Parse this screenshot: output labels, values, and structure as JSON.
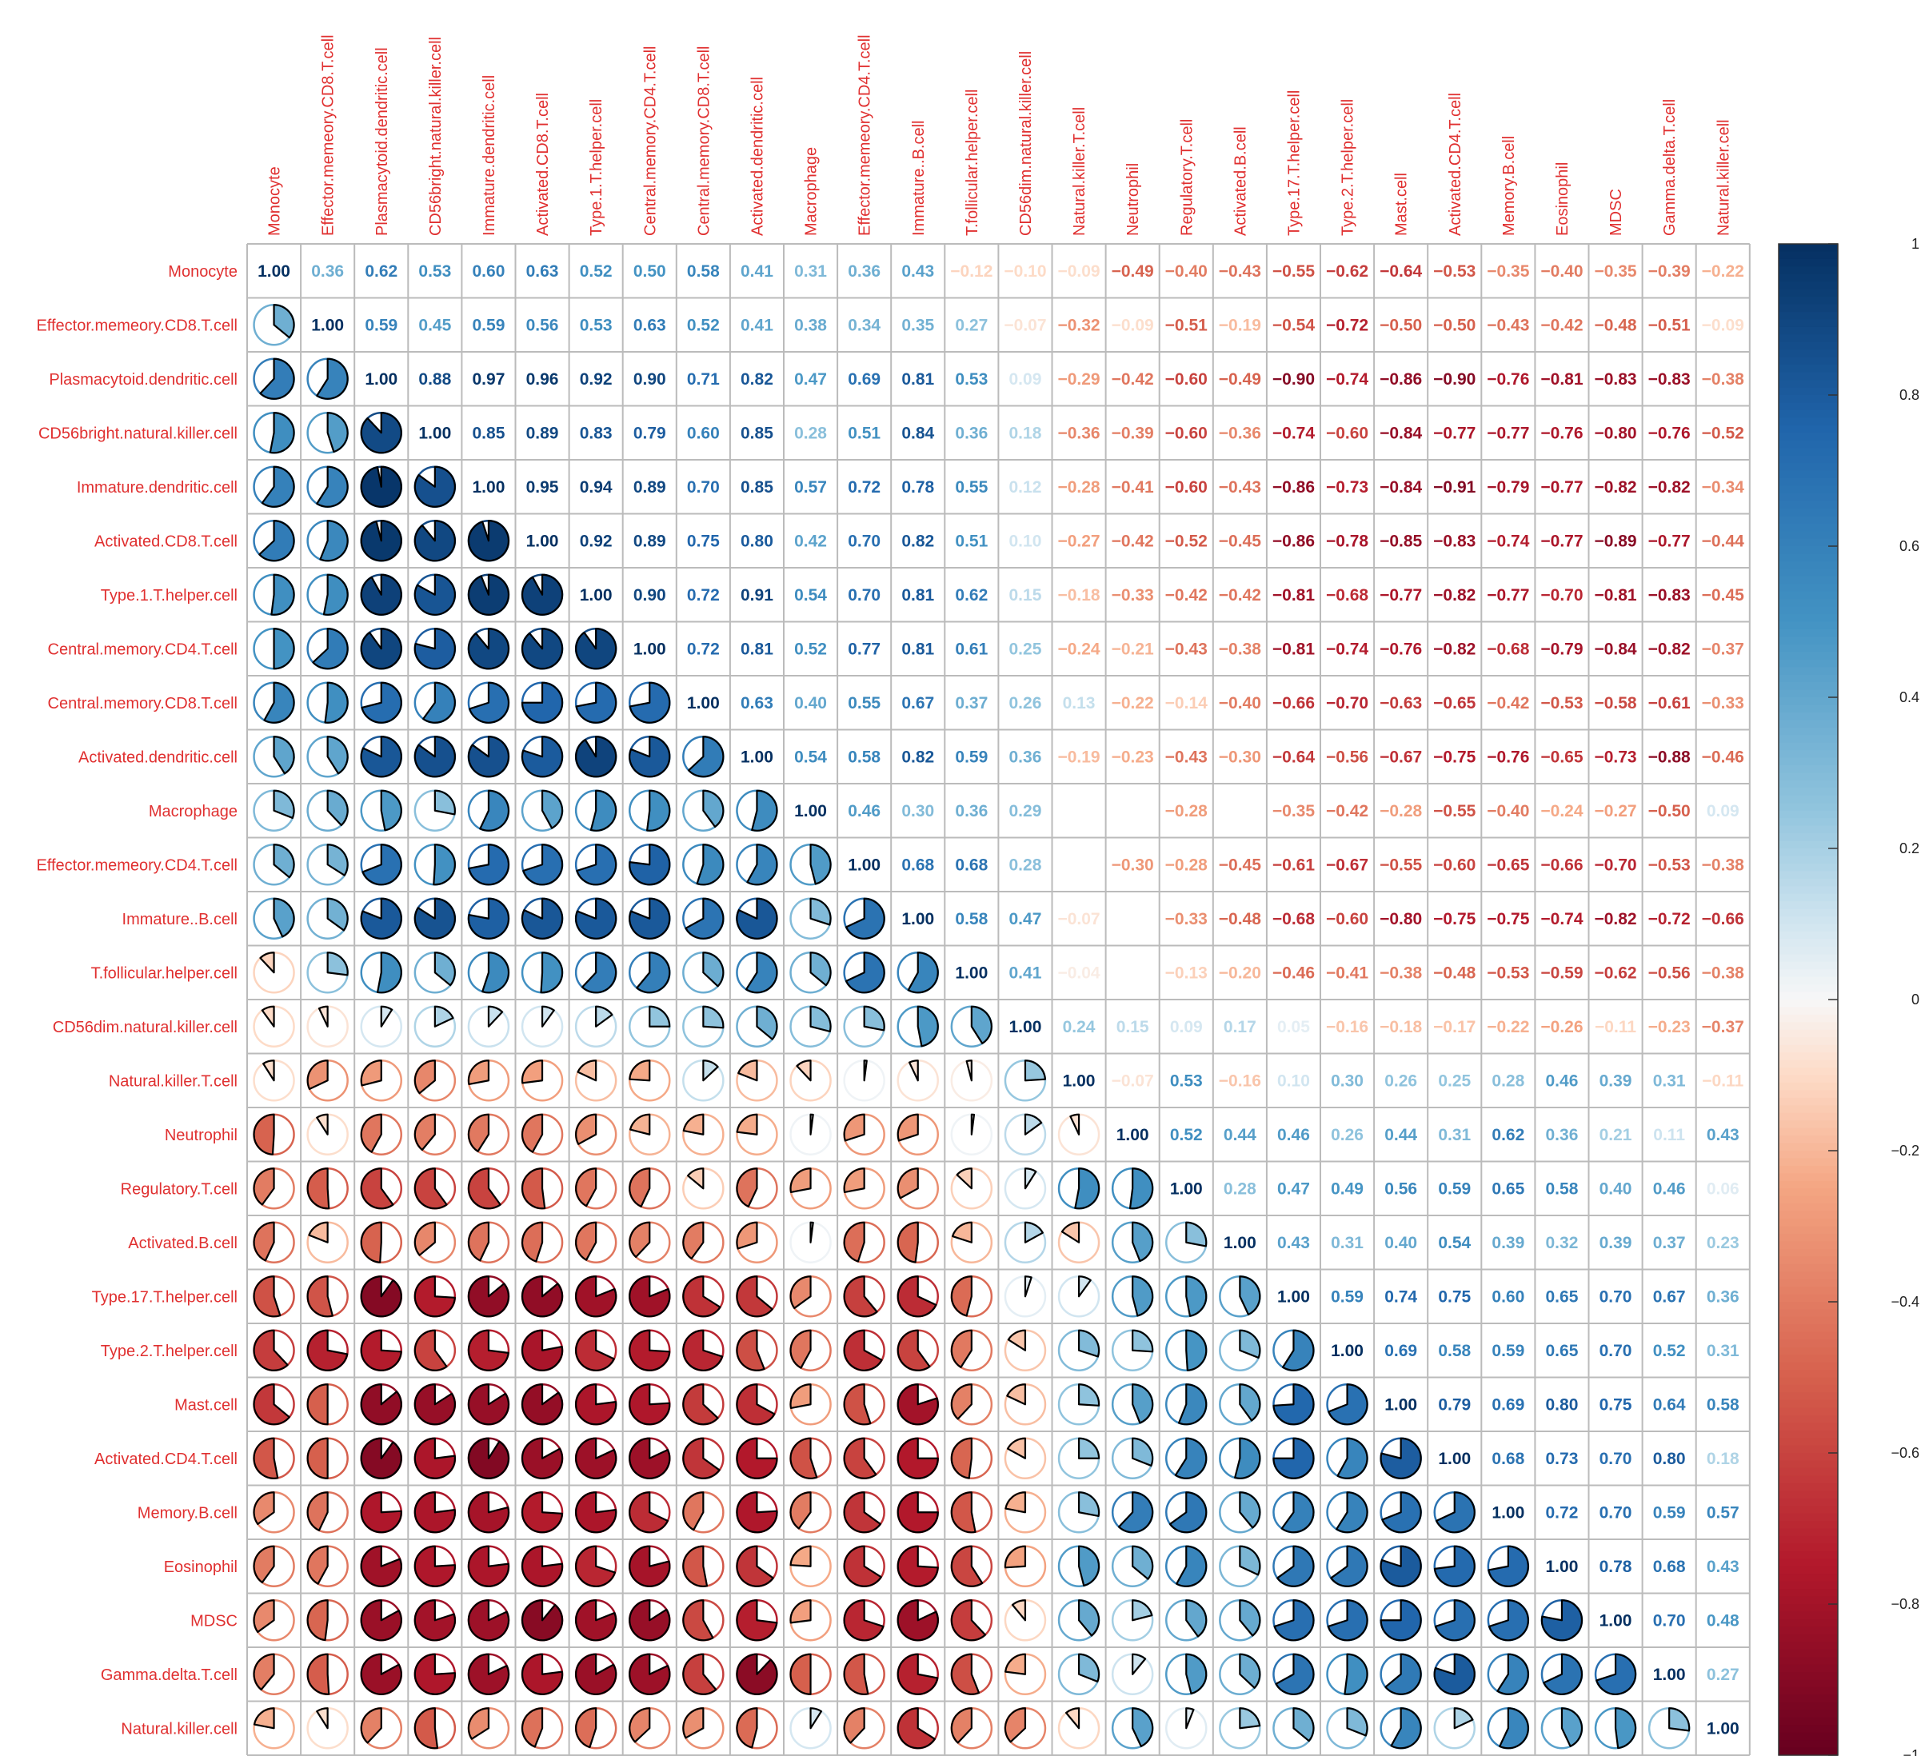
{
  "chart_data": {
    "type": "heatmap",
    "title": "",
    "variables": [
      "Monocyte",
      "Effector.memeory.CD8.T.cell",
      "Plasmacytoid.dendritic.cell",
      "CD56bright.natural.killer.cell",
      "Immature.dendritic.cell",
      "Activated.CD8.T.cell",
      "Type.1.T.helper.cell",
      "Central.memory.CD4.T.cell",
      "Central.memory.CD8.T.cell",
      "Activated.dendritic.cell",
      "Macrophage",
      "Effector.memeory.CD4.T.cell",
      "Immature..B.cell",
      "T.follicular.helper.cell",
      "CD56dim.natural.killer.cell",
      "Natural.killer.T.cell",
      "Neutrophil",
      "Regulatory.T.cell",
      "Activated.B.cell",
      "Type.17.T.helper.cell",
      "Type.2.T.helper.cell",
      "Mast.cell",
      "Activated.CD4.T.cell",
      "Memory.B.cell",
      "Eosinophil",
      "MDSC",
      "Gamma.delta.T.cell",
      "Natural.killer.cell"
    ],
    "upper_display": "number",
    "lower_display": "pie",
    "diagonal_value": "1.00",
    "blank_cells": [
      [
        10,
        15
      ],
      [
        10,
        16
      ],
      [
        10,
        18
      ],
      [
        11,
        15
      ],
      [
        12,
        16
      ],
      [
        13,
        16
      ]
    ],
    "matrix": [
      [
        1.0,
        0.36,
        0.62,
        0.53,
        0.6,
        0.63,
        0.52,
        0.5,
        0.58,
        0.41,
        0.31,
        0.36,
        0.43,
        -0.12,
        -0.1,
        -0.09,
        -0.49,
        -0.4,
        -0.43,
        -0.55,
        -0.62,
        -0.64,
        -0.53,
        -0.35,
        -0.4,
        -0.35,
        -0.39,
        -0.22
      ],
      [
        0.36,
        1.0,
        0.59,
        0.45,
        0.59,
        0.56,
        0.53,
        0.63,
        0.52,
        0.41,
        0.38,
        0.34,
        0.35,
        0.27,
        -0.07,
        -0.32,
        -0.09,
        -0.51,
        -0.19,
        -0.54,
        -0.72,
        -0.5,
        -0.5,
        -0.43,
        -0.42,
        -0.48,
        -0.51,
        -0.09
      ],
      [
        0.62,
        0.59,
        1.0,
        0.88,
        0.97,
        0.96,
        0.92,
        0.9,
        0.71,
        0.82,
        0.47,
        0.69,
        0.81,
        0.53,
        0.09,
        -0.29,
        -0.42,
        -0.6,
        -0.49,
        -0.9,
        -0.74,
        -0.86,
        -0.9,
        -0.76,
        -0.81,
        -0.83,
        -0.83,
        -0.38
      ],
      [
        0.53,
        0.45,
        0.88,
        1.0,
        0.85,
        0.89,
        0.83,
        0.79,
        0.6,
        0.85,
        0.28,
        0.51,
        0.84,
        0.36,
        0.18,
        -0.36,
        -0.39,
        -0.6,
        -0.36,
        -0.74,
        -0.6,
        -0.84,
        -0.77,
        -0.77,
        -0.76,
        -0.8,
        -0.76,
        -0.52
      ],
      [
        0.6,
        0.59,
        0.97,
        0.85,
        1.0,
        0.95,
        0.94,
        0.89,
        0.7,
        0.85,
        0.57,
        0.72,
        0.78,
        0.55,
        0.12,
        -0.28,
        -0.41,
        -0.6,
        -0.43,
        -0.86,
        -0.73,
        -0.84,
        -0.91,
        -0.79,
        -0.77,
        -0.82,
        -0.82,
        -0.34
      ],
      [
        0.63,
        0.56,
        0.96,
        0.89,
        0.95,
        1.0,
        0.92,
        0.89,
        0.75,
        0.8,
        0.42,
        0.7,
        0.82,
        0.51,
        0.1,
        -0.27,
        -0.42,
        -0.52,
        -0.45,
        -0.86,
        -0.78,
        -0.85,
        -0.83,
        -0.74,
        -0.77,
        -0.89,
        -0.77,
        -0.44
      ],
      [
        0.52,
        0.53,
        0.92,
        0.83,
        0.94,
        0.92,
        1.0,
        0.9,
        0.72,
        0.91,
        0.54,
        0.7,
        0.81,
        0.62,
        0.15,
        -0.18,
        -0.33,
        -0.42,
        -0.42,
        -0.81,
        -0.68,
        -0.77,
        -0.82,
        -0.77,
        -0.7,
        -0.81,
        -0.83,
        -0.45
      ],
      [
        0.5,
        0.63,
        0.9,
        0.79,
        0.89,
        0.89,
        0.9,
        1.0,
        0.72,
        0.81,
        0.52,
        0.77,
        0.81,
        0.61,
        0.25,
        -0.24,
        -0.21,
        -0.43,
        -0.38,
        -0.81,
        -0.74,
        -0.76,
        -0.82,
        -0.68,
        -0.79,
        -0.84,
        -0.82,
        -0.37
      ],
      [
        0.58,
        0.52,
        0.71,
        0.6,
        0.7,
        0.75,
        0.72,
        0.72,
        1.0,
        0.63,
        0.4,
        0.55,
        0.67,
        0.37,
        0.26,
        0.13,
        -0.22,
        -0.14,
        -0.4,
        -0.66,
        -0.7,
        -0.63,
        -0.65,
        -0.42,
        -0.53,
        -0.58,
        -0.61,
        -0.33
      ],
      [
        0.41,
        0.41,
        0.82,
        0.85,
        0.85,
        0.8,
        0.91,
        0.81,
        0.63,
        1.0,
        0.54,
        0.58,
        0.82,
        0.59,
        0.36,
        -0.19,
        -0.23,
        -0.43,
        -0.3,
        -0.64,
        -0.56,
        -0.67,
        -0.75,
        -0.76,
        -0.65,
        -0.73,
        -0.88,
        -0.46
      ],
      [
        0.31,
        0.38,
        0.47,
        0.28,
        0.57,
        0.42,
        0.54,
        0.52,
        0.4,
        0.54,
        1.0,
        0.46,
        0.3,
        0.36,
        0.29,
        -0.12,
        0.02,
        -0.28,
        0.02,
        -0.35,
        -0.42,
        -0.28,
        -0.55,
        -0.4,
        -0.24,
        -0.27,
        -0.5,
        0.09
      ],
      [
        0.36,
        0.34,
        0.69,
        0.51,
        0.72,
        0.7,
        0.7,
        0.77,
        0.55,
        0.58,
        0.46,
        1.0,
        0.68,
        0.68,
        0.28,
        0.02,
        -0.3,
        -0.28,
        -0.45,
        -0.61,
        -0.67,
        -0.55,
        -0.6,
        -0.65,
        -0.66,
        -0.7,
        -0.53,
        -0.38
      ],
      [
        0.43,
        0.35,
        0.81,
        0.84,
        0.78,
        0.82,
        0.81,
        0.81,
        0.67,
        0.82,
        0.3,
        0.68,
        1.0,
        0.58,
        0.47,
        -0.07,
        -0.3,
        -0.33,
        -0.48,
        -0.68,
        -0.6,
        -0.8,
        -0.75,
        -0.75,
        -0.74,
        -0.82,
        -0.72,
        -0.66
      ],
      [
        -0.12,
        0.27,
        0.53,
        0.36,
        0.55,
        0.51,
        0.62,
        0.61,
        0.37,
        0.59,
        0.36,
        0.68,
        0.58,
        1.0,
        0.41,
        -0.04,
        0.02,
        -0.13,
        -0.2,
        -0.46,
        -0.41,
        -0.38,
        -0.48,
        -0.53,
        -0.59,
        -0.62,
        -0.56,
        -0.38
      ],
      [
        -0.1,
        -0.07,
        0.09,
        0.18,
        0.12,
        0.1,
        0.15,
        0.25,
        0.26,
        0.36,
        0.29,
        0.28,
        0.47,
        0.41,
        1.0,
        0.24,
        0.15,
        0.09,
        0.17,
        0.05,
        -0.16,
        -0.18,
        -0.17,
        -0.22,
        -0.26,
        -0.11,
        -0.23,
        -0.37
      ],
      [
        -0.09,
        -0.32,
        -0.29,
        -0.36,
        -0.28,
        -0.27,
        -0.18,
        -0.24,
        0.13,
        -0.19,
        -0.12,
        0.02,
        -0.07,
        -0.04,
        0.24,
        1.0,
        -0.07,
        0.53,
        -0.16,
        0.1,
        0.3,
        0.26,
        0.25,
        0.28,
        0.46,
        0.39,
        0.31,
        -0.11
      ],
      [
        -0.49,
        -0.09,
        -0.42,
        -0.39,
        -0.41,
        -0.42,
        -0.33,
        -0.21,
        -0.22,
        -0.23,
        0.02,
        -0.3,
        -0.3,
        0.02,
        0.15,
        -0.07,
        1.0,
        0.52,
        0.44,
        0.46,
        0.26,
        0.44,
        0.31,
        0.62,
        0.36,
        0.21,
        0.11,
        0.43
      ],
      [
        -0.4,
        -0.51,
        -0.6,
        -0.6,
        -0.6,
        -0.52,
        -0.42,
        -0.43,
        -0.14,
        -0.43,
        -0.28,
        -0.28,
        -0.33,
        -0.13,
        0.09,
        0.53,
        0.52,
        1.0,
        0.28,
        0.47,
        0.49,
        0.56,
        0.59,
        0.65,
        0.58,
        0.4,
        0.46,
        0.06
      ],
      [
        -0.43,
        -0.19,
        -0.49,
        -0.36,
        -0.43,
        -0.45,
        -0.42,
        -0.38,
        -0.4,
        -0.3,
        0.02,
        -0.45,
        -0.48,
        -0.2,
        0.17,
        -0.16,
        0.44,
        0.28,
        1.0,
        0.43,
        0.31,
        0.4,
        0.54,
        0.39,
        0.32,
        0.39,
        0.37,
        0.23
      ],
      [
        -0.55,
        -0.54,
        -0.9,
        -0.74,
        -0.86,
        -0.86,
        -0.81,
        -0.81,
        -0.66,
        -0.64,
        -0.35,
        -0.61,
        -0.68,
        -0.46,
        0.05,
        0.1,
        0.46,
        0.47,
        0.43,
        1.0,
        0.59,
        0.74,
        0.75,
        0.6,
        0.65,
        0.7,
        0.67,
        0.36
      ],
      [
        -0.62,
        -0.72,
        -0.74,
        -0.6,
        -0.73,
        -0.78,
        -0.68,
        -0.74,
        -0.7,
        -0.56,
        -0.42,
        -0.67,
        -0.6,
        -0.41,
        -0.16,
        0.3,
        0.26,
        0.49,
        0.31,
        0.59,
        1.0,
        0.69,
        0.58,
        0.59,
        0.65,
        0.7,
        0.52,
        0.31
      ],
      [
        -0.64,
        -0.5,
        -0.86,
        -0.84,
        -0.84,
        -0.85,
        -0.77,
        -0.76,
        -0.63,
        -0.67,
        -0.28,
        -0.55,
        -0.8,
        -0.38,
        -0.18,
        0.26,
        0.44,
        0.56,
        0.4,
        0.74,
        0.69,
        1.0,
        0.79,
        0.69,
        0.8,
        0.75,
        0.64,
        0.58
      ],
      [
        -0.53,
        -0.5,
        -0.9,
        -0.77,
        -0.91,
        -0.83,
        -0.82,
        -0.82,
        -0.65,
        -0.75,
        -0.55,
        -0.6,
        -0.75,
        -0.48,
        -0.17,
        0.25,
        0.31,
        0.59,
        0.54,
        0.75,
        0.58,
        0.79,
        1.0,
        0.68,
        0.73,
        0.7,
        0.8,
        0.18
      ],
      [
        -0.35,
        -0.43,
        -0.76,
        -0.77,
        -0.79,
        -0.74,
        -0.77,
        -0.68,
        -0.42,
        -0.76,
        -0.4,
        -0.65,
        -0.75,
        -0.53,
        -0.22,
        0.28,
        0.62,
        0.65,
        0.39,
        0.6,
        0.59,
        0.69,
        0.68,
        1.0,
        0.72,
        0.7,
        0.59,
        0.57
      ],
      [
        -0.4,
        -0.42,
        -0.81,
        -0.76,
        -0.77,
        -0.77,
        -0.7,
        -0.79,
        -0.53,
        -0.65,
        -0.24,
        -0.66,
        -0.74,
        -0.59,
        -0.26,
        0.46,
        0.36,
        0.58,
        0.32,
        0.65,
        0.65,
        0.8,
        0.73,
        0.72,
        1.0,
        0.78,
        0.68,
        0.43
      ],
      [
        -0.35,
        -0.48,
        -0.83,
        -0.8,
        -0.82,
        -0.89,
        -0.81,
        -0.84,
        -0.58,
        -0.73,
        -0.27,
        -0.7,
        -0.82,
        -0.62,
        -0.11,
        0.39,
        0.21,
        0.4,
        0.39,
        0.7,
        0.7,
        0.75,
        0.7,
        0.7,
        0.78,
        1.0,
        0.7,
        0.48
      ],
      [
        -0.39,
        -0.51,
        -0.83,
        -0.76,
        -0.82,
        -0.77,
        -0.83,
        -0.82,
        -0.61,
        -0.88,
        -0.5,
        -0.53,
        -0.72,
        -0.56,
        -0.23,
        0.31,
        0.11,
        0.46,
        0.37,
        0.67,
        0.52,
        0.64,
        0.8,
        0.59,
        0.68,
        0.7,
        1.0,
        0.27
      ],
      [
        -0.22,
        -0.09,
        -0.38,
        -0.52,
        -0.34,
        -0.44,
        -0.45,
        -0.37,
        -0.33,
        -0.46,
        0.09,
        -0.38,
        -0.66,
        -0.38,
        -0.37,
        -0.11,
        0.43,
        0.06,
        0.23,
        0.36,
        0.31,
        0.58,
        0.18,
        0.57,
        0.43,
        0.48,
        0.27,
        1.0
      ]
    ],
    "colorbar": {
      "min": -1,
      "max": 1,
      "ticks": [
        1,
        0.8,
        0.6,
        0.4,
        0.2,
        0,
        -0.2,
        -0.4,
        -0.6,
        -0.8,
        -1
      ],
      "tick_labels": [
        "1",
        "0.8",
        "0.6",
        "0.4",
        "0.2",
        "0",
        "−0.2",
        "−0.4",
        "−0.6",
        "−0.8",
        "−1"
      ]
    },
    "colors": {
      "negative_end": "#67001f",
      "positive_end": "#053061",
      "midpoint": "#f7f7f7",
      "labels": "#e03030",
      "grid": "#bbbbbb"
    }
  }
}
